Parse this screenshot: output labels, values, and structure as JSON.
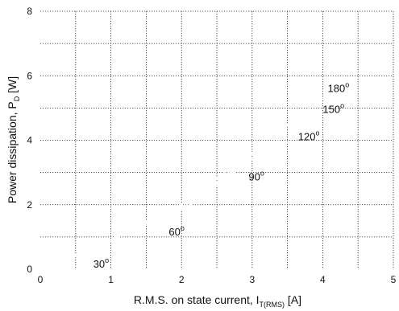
{
  "chart_data": {
    "type": "line",
    "xlabel_main": "R.M.S. on state current, I",
    "xlabel_sub": "T(RMS)",
    "xlabel_unit": " [A]",
    "ylabel_main": "Power dissipation, P",
    "ylabel_sub": "D",
    "ylabel_unit": " [W]",
    "xlim": [
      0,
      5
    ],
    "ylim": [
      0,
      8
    ],
    "x_ticks": [
      0,
      1,
      2,
      3,
      4,
      5
    ],
    "y_ticks": [
      0,
      2,
      4,
      6,
      8
    ],
    "grid": true,
    "grid_style": "dotted",
    "curve_color": "#ffffff",
    "series": [
      {
        "label": "30",
        "x": [
          0.0,
          0.3,
          0.6,
          0.9,
          1.0
        ],
        "y": [
          0.0,
          0.25,
          0.5,
          0.82,
          0.9
        ]
      },
      {
        "label": "60",
        "x": [
          0.0,
          0.5,
          1.0,
          1.5,
          2.0
        ],
        "y": [
          0.0,
          0.42,
          0.88,
          1.38,
          1.9
        ]
      },
      {
        "label": "90",
        "x": [
          0.0,
          0.5,
          1.0,
          2.0,
          3.0
        ],
        "y": [
          0.0,
          0.4,
          0.88,
          1.85,
          2.95
        ]
      },
      {
        "label": "120",
        "x": [
          0.0,
          1.0,
          2.0,
          3.0,
          3.5
        ],
        "y": [
          0.0,
          0.9,
          1.92,
          3.35,
          3.95
        ]
      },
      {
        "label": "150",
        "x": [
          0.0,
          1.0,
          2.0,
          3.0,
          4.0
        ],
        "y": [
          0.0,
          0.9,
          1.95,
          3.45,
          4.9
        ]
      },
      {
        "label": "180",
        "x": [
          0.0,
          1.0,
          2.0,
          3.0,
          4.0
        ],
        "y": [
          0.0,
          0.92,
          2.0,
          3.6,
          5.3
        ]
      }
    ],
    "annotations": [
      {
        "text": "30",
        "sup": "o",
        "x": 0.75,
        "y": 0.05
      },
      {
        "text": "60",
        "sup": "o",
        "x": 1.82,
        "y": 1.05
      },
      {
        "text": "90",
        "sup": "o",
        "x": 2.95,
        "y": 2.75
      },
      {
        "text": "120",
        "sup": "o",
        "x": 3.65,
        "y": 4.0
      },
      {
        "text": "150",
        "sup": "o",
        "x": 4.0,
        "y": 4.85
      },
      {
        "text": "180",
        "sup": "o",
        "x": 4.07,
        "y": 5.5
      }
    ]
  }
}
